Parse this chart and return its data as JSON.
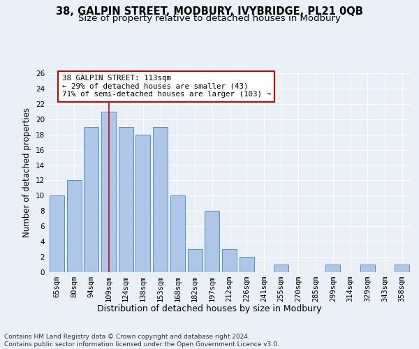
{
  "title1": "38, GALPIN STREET, MODBURY, IVYBRIDGE, PL21 0QB",
  "title2": "Size of property relative to detached houses in Modbury",
  "xlabel": "Distribution of detached houses by size in Modbury",
  "ylabel": "Number of detached properties",
  "categories": [
    "65sqm",
    "80sqm",
    "94sqm",
    "109sqm",
    "124sqm",
    "138sqm",
    "153sqm",
    "168sqm",
    "182sqm",
    "197sqm",
    "212sqm",
    "226sqm",
    "241sqm",
    "255sqm",
    "270sqm",
    "285sqm",
    "299sqm",
    "314sqm",
    "329sqm",
    "343sqm",
    "358sqm"
  ],
  "values": [
    10,
    12,
    19,
    21,
    19,
    18,
    19,
    10,
    3,
    8,
    3,
    2,
    0,
    1,
    0,
    0,
    1,
    0,
    1,
    0,
    1
  ],
  "bar_color": "#aec6e8",
  "bar_edge_color": "#5a8fc2",
  "ylim": [
    0,
    26
  ],
  "yticks": [
    0,
    2,
    4,
    6,
    8,
    10,
    12,
    14,
    16,
    18,
    20,
    22,
    24,
    26
  ],
  "vline_x": 3,
  "vline_color": "#cc0000",
  "annotation_line1": "38 GALPIN STREET: 113sqm",
  "annotation_line2": "← 29% of detached houses are smaller (43)",
  "annotation_line3": "71% of semi-detached houses are larger (103) →",
  "box_edge_color": "#cc0000",
  "footnote": "Contains HM Land Registry data © Crown copyright and database right 2024.\nContains public sector information licensed under the Open Government Licence v3.0.",
  "bg_color": "#eaf0f8",
  "plot_bg_color": "#eaf0f8",
  "grid_color": "#ffffff",
  "title_fontsize": 10.5,
  "subtitle_fontsize": 9.5,
  "tick_fontsize": 7.5,
  "ylabel_fontsize": 8.5,
  "xlabel_fontsize": 9,
  "annot_fontsize": 7.8,
  "footnote_fontsize": 6.5
}
